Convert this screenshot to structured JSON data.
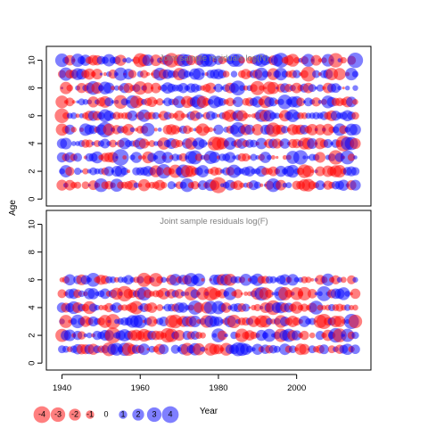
{
  "chart_data": {
    "type": "scatter",
    "style": "bubble",
    "ylabel": "Age",
    "xlabel": "Year",
    "xlim": [
      1936,
      2019
    ],
    "x_ticks": [
      1940,
      1960,
      1980,
      2000
    ],
    "years": [
      1940,
      2015
    ],
    "colors": {
      "positive": "#0000ff",
      "negative": "#ff0000",
      "frame": "#000000",
      "title": "#808080"
    },
    "panels": [
      {
        "title": "Joint sample residuals log(N)",
        "ylim": [
          -0.5,
          11
        ],
        "y_ticks": [
          0,
          2,
          4,
          6,
          8,
          10
        ],
        "ages": [
          1,
          2,
          3,
          4,
          5,
          6,
          7,
          8,
          9,
          10
        ],
        "seed": 11
      },
      {
        "title": "Joint sample residuals log(F)",
        "ylim": [
          -0.5,
          11
        ],
        "y_ticks": [
          0,
          2,
          4,
          6,
          8,
          10
        ],
        "ages": [
          1,
          2,
          3,
          4,
          5,
          6
        ],
        "seed": 29
      }
    ],
    "legend": {
      "values": [
        -4,
        -3,
        -2,
        -1,
        0,
        1,
        2,
        3,
        4
      ],
      "labels": [
        "-4",
        "-3",
        "-2",
        "-1",
        "0",
        "1",
        "2",
        "3",
        "4"
      ]
    }
  }
}
